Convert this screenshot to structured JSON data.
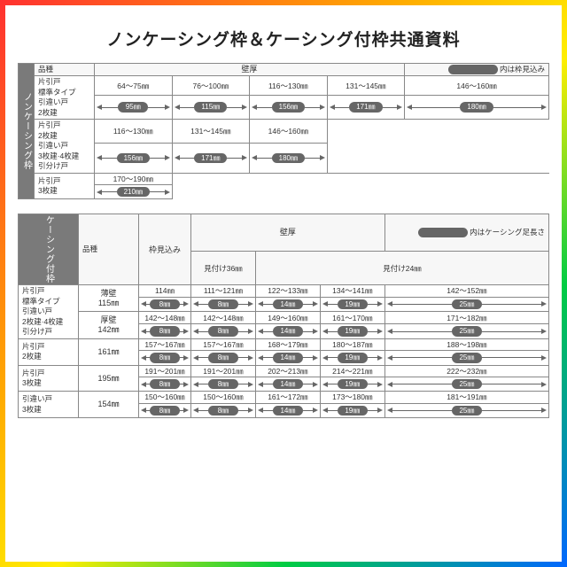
{
  "title": "ノンケーシング枠＆ケーシング付枠共通資料",
  "colors": {
    "pill": "#666666",
    "vlabel_bg": "#7a7a7a",
    "border": "#888888"
  },
  "table1": {
    "vlabel": "ノンケーシング枠",
    "headers": {
      "kind": "品種",
      "wall": "壁厚",
      "note": "内は枠見込み"
    },
    "groups": [
      {
        "cat": "片引戸\n 標準タイプ\n引違い戸\n 2枚建",
        "cols": [
          {
            "range": "64～75㎜"
          },
          {
            "range": "76～100㎜"
          },
          {
            "range": "116～130㎜"
          },
          {
            "range": "131～145㎜"
          },
          {
            "range": "146～160㎜"
          }
        ],
        "pills": [
          "95㎜",
          "115㎜",
          "156㎜",
          "171㎜",
          "180㎜"
        ]
      },
      {
        "cat": "片引戸\n 2枚建\n引違い戸\n 3枚建·4枚建\n引分け戸",
        "cols": [
          {
            "range": "116～130㎜"
          },
          {
            "range": "131～145㎜"
          },
          {
            "range": "146～160㎜"
          }
        ],
        "pills": [
          "156㎜",
          "171㎜",
          "180㎜"
        ],
        "blank_after": 2
      },
      {
        "cat": "片引戸\n 3枚建",
        "cols": [
          {
            "range": "170～190㎜"
          }
        ],
        "pills": [
          "210㎜"
        ],
        "blank_after": 4
      }
    ]
  },
  "table2": {
    "vlabel": "ケーシング付枠",
    "headers": {
      "kind": "品種",
      "frame": "枠見込み",
      "wall": "壁厚",
      "note": "内はケーシング足長さ",
      "sub_a": "見付け36㎜",
      "sub_b": "見付け24㎜"
    },
    "rows": [
      {
        "cat": "片引戸\n 標準タイプ\n引違い戸\n 2枚建·4枚建\n引分け戸",
        "subrows": [
          {
            "frame": "薄壁\n115㎜",
            "ranges": [
              "114㎜",
              "111～121㎜",
              "122～133㎜",
              "134～141㎜",
              "142～152㎜"
            ],
            "pills": [
              "8㎜",
              "8㎜",
              "14㎜",
              "19㎜",
              "25㎜"
            ]
          },
          {
            "frame": "厚壁\n142㎜",
            "ranges": [
              "142～148㎜",
              "142～148㎜",
              "149～160㎜",
              "161～170㎜",
              "171～182㎜"
            ],
            "pills": [
              "8㎜",
              "8㎜",
              "14㎜",
              "19㎜",
              "25㎜"
            ]
          }
        ]
      },
      {
        "cat": "片引戸\n 2枚建",
        "subrows": [
          {
            "frame": "161㎜",
            "ranges": [
              "157～167㎜",
              "157～167㎜",
              "168～179㎜",
              "180～187㎜",
              "188～198㎜"
            ],
            "pills": [
              "8㎜",
              "8㎜",
              "14㎜",
              "19㎜",
              "25㎜"
            ]
          }
        ]
      },
      {
        "cat": "片引戸\n 3枚建",
        "subrows": [
          {
            "frame": "195㎜",
            "ranges": [
              "191～201㎜",
              "191～201㎜",
              "202～213㎜",
              "214～221㎜",
              "222～232㎜"
            ],
            "pills": [
              "8㎜",
              "8㎜",
              "14㎜",
              "19㎜",
              "25㎜"
            ]
          }
        ]
      },
      {
        "cat": "引違い戸\n 3枚建",
        "subrows": [
          {
            "frame": "154㎜",
            "ranges": [
              "150～160㎜",
              "150～160㎜",
              "161～172㎜",
              "173～180㎜",
              "181～191㎜"
            ],
            "pills": [
              "8㎜",
              "8㎜",
              "14㎜",
              "19㎜",
              "25㎜"
            ]
          }
        ]
      }
    ]
  }
}
